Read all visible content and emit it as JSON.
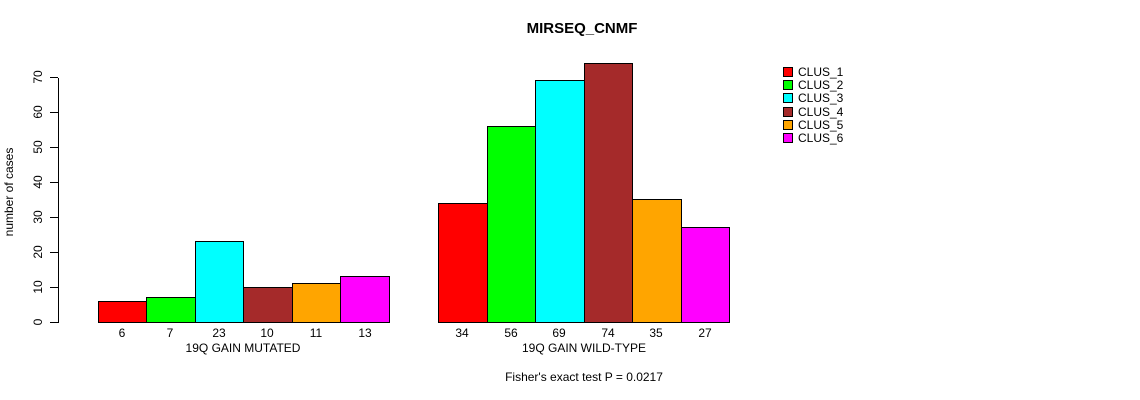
{
  "chart_data": {
    "type": "bar",
    "title": "MIRSEQ_CNMF",
    "ylabel": "number of cases",
    "ylim": [
      0,
      70
    ],
    "yticks": [
      0,
      10,
      20,
      30,
      40,
      50,
      60,
      70
    ],
    "grid": false,
    "legend_position": "right",
    "legend": [
      {
        "label": "CLUS_1",
        "color": "#FF0000"
      },
      {
        "label": "CLUS_2",
        "color": "#00FF00"
      },
      {
        "label": "CLUS_3",
        "color": "#00FFFF"
      },
      {
        "label": "CLUS_4",
        "color": "#A52A2A"
      },
      {
        "label": "CLUS_5",
        "color": "#FFA500"
      },
      {
        "label": "CLUS_6",
        "color": "#FF00FF"
      }
    ],
    "groups": [
      {
        "label": "19Q GAIN MUTATED",
        "values": [
          6,
          7,
          23,
          10,
          11,
          13
        ]
      },
      {
        "label": "19Q GAIN WILD-TYPE",
        "values": [
          34,
          56,
          69,
          74,
          35,
          27
        ]
      }
    ],
    "footnote": "Fisher's exact test P = 0.0217"
  }
}
